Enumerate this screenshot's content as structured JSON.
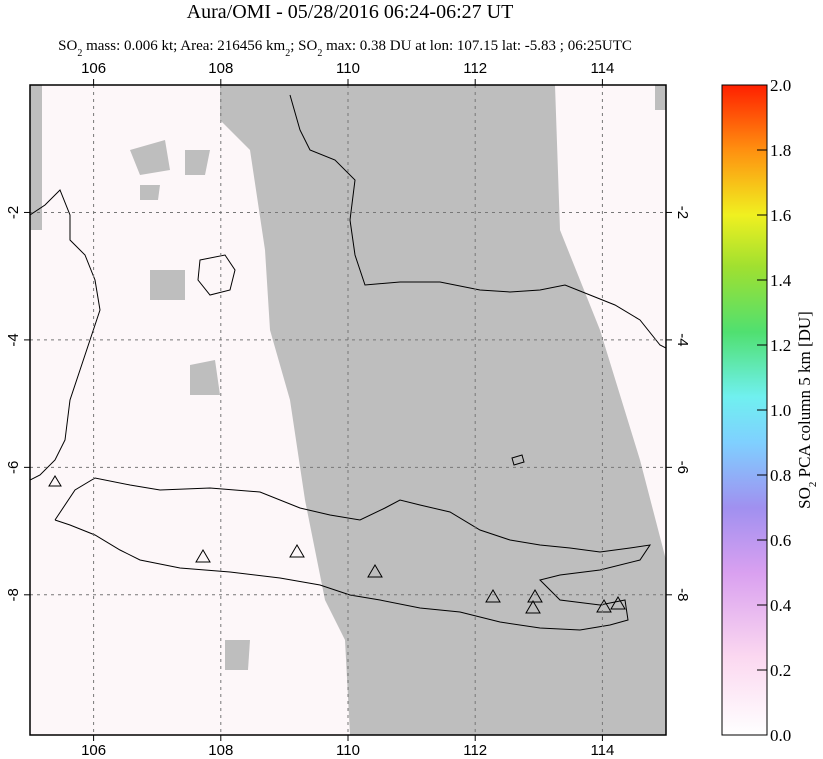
{
  "title": "Aura/OMI - 05/28/2016 06:24-06:27 UT",
  "subtitle": [
    "SO",
    "2",
    " mass: 0.006 kt; Area: 216456 km",
    "2",
    "; SO",
    "2",
    " max: 0.38 DU at lon: 107.15 lat: -5.83 ; 06:25UTC"
  ],
  "map": {
    "lonlim": [
      105,
      115
    ],
    "latlim": [
      -10.2,
      0
    ],
    "lonticks": [
      106,
      108,
      110,
      112,
      114
    ],
    "latticks": [
      -2,
      -4,
      -6,
      -8
    ]
  },
  "colorbar": {
    "lim": [
      0,
      2
    ],
    "ticks": [
      {
        "value": 0,
        "label": "0.0"
      },
      0.2,
      0.4,
      0.6,
      0.8,
      {
        "value": 1,
        "label": "1.0"
      },
      1.2,
      1.4,
      1.6,
      1.8,
      {
        "value": 2,
        "label": "2.0"
      }
    ],
    "label": [
      "SO",
      "2",
      " PCA column 5 km [DU]"
    ]
  }
}
